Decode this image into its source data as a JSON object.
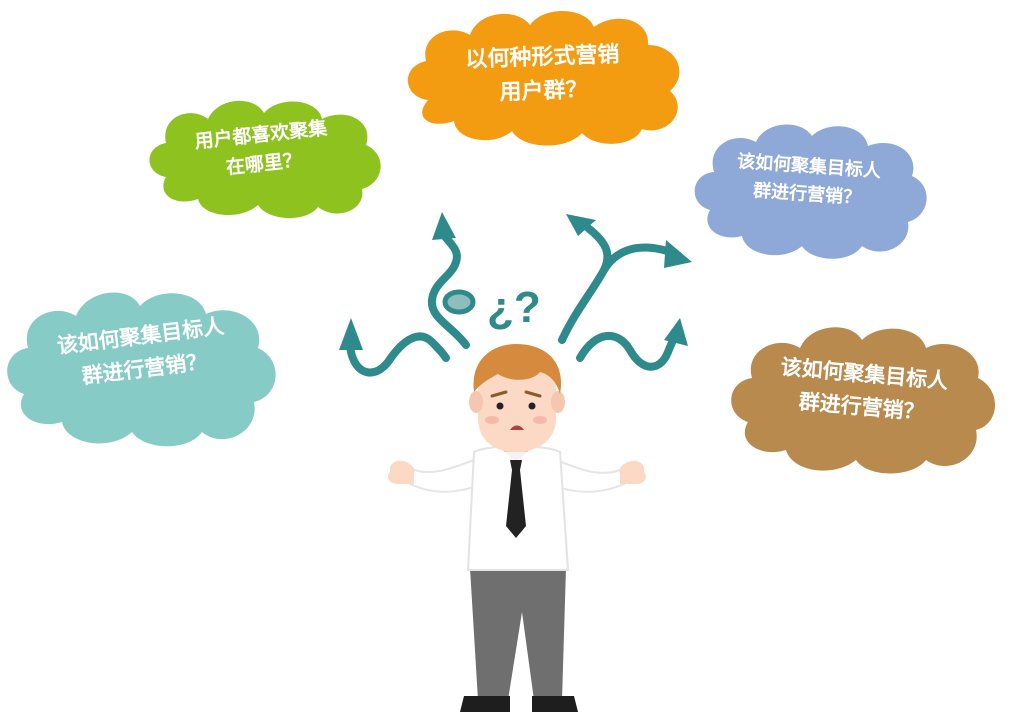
{
  "bubbles": {
    "orange": {
      "line1": "以何种形式营销",
      "line2": "用户群？",
      "color": "#F39C12"
    },
    "green": {
      "line1": "用户都喜欢聚集",
      "line2": "在哪里？",
      "color": "#8DC21F"
    },
    "blue": {
      "line1": "该如何聚集目标人",
      "line2": "群进行营销？",
      "color": "#8EA9D8"
    },
    "teal": {
      "line1": "该如何聚集目标人",
      "line2": "群进行营销？",
      "color": "#86CBC5"
    },
    "brown": {
      "line1": "该如何聚集目标人",
      "line2": "群进行营销？",
      "color": "#B98A4E"
    }
  },
  "question_mark": "¿?",
  "colors": {
    "arrow": "#2F8A8C",
    "skin": "#FBD9C4",
    "hair": "#D58A3E",
    "shirt": "#FFFFFF",
    "tie": "#222222",
    "pants": "#6F6F6F"
  },
  "icons": [
    "cloud",
    "curved-arrow",
    "confused-man"
  ]
}
